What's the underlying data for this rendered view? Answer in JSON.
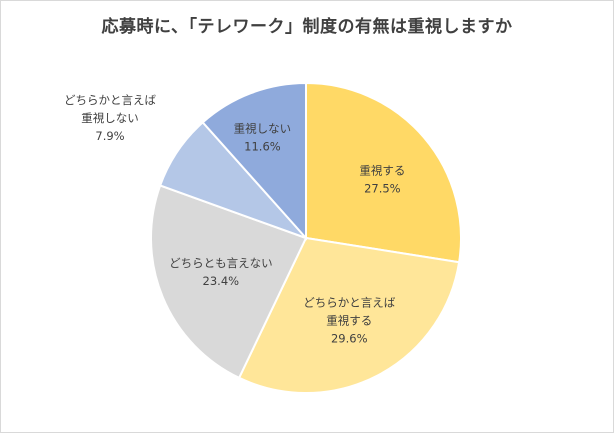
{
  "chart_data": {
    "type": "pie",
    "title": "応募時に、「テレワーク」制度の有無は重視しますか",
    "start_angle_deg": 0,
    "direction": "clockwise",
    "slices": [
      {
        "label_lines": [
          "重視する"
        ],
        "value_label": "27.5%",
        "value": 27.5,
        "color": "#ffd966"
      },
      {
        "label_lines": [
          "どちらかと言えば",
          "重視する"
        ],
        "value_label": "29.6%",
        "value": 29.6,
        "color": "#ffe699"
      },
      {
        "label_lines": [
          "どちらとも言えない"
        ],
        "value_label": "23.4%",
        "value": 23.4,
        "color": "#d9d9d9"
      },
      {
        "label_lines": [
          "どちらかと言えば",
          "重視しない"
        ],
        "value_label": "7.9%",
        "value": 7.9,
        "color": "#b4c7e7"
      },
      {
        "label_lines": [
          "重視しない"
        ],
        "value_label": "11.6%",
        "value": 11.6,
        "color": "#8faadc"
      }
    ],
    "legend": "none"
  }
}
